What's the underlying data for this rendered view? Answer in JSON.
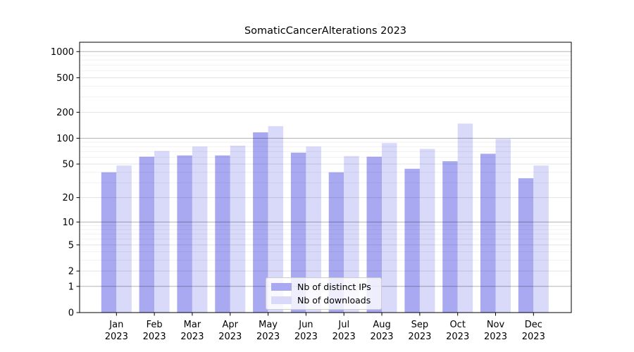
{
  "title": "SomaticCancerAlterations 2023",
  "legend": {
    "series1_label": "Nb of distinct IPs",
    "series2_label": "Nb of downloads"
  },
  "chart_data": {
    "type": "bar",
    "title": "SomaticCancerAlterations 2023",
    "yscale": "log1p",
    "grid": true,
    "legend_position": "lower center",
    "categories": [
      "Jan",
      "Feb",
      "Mar",
      "Apr",
      "May",
      "Jun",
      "Jul",
      "Aug",
      "Sep",
      "Oct",
      "Nov",
      "Dec"
    ],
    "x_year": "2023",
    "y_ticks": [
      0,
      1,
      2,
      5,
      10,
      20,
      50,
      100,
      200,
      500,
      1000
    ],
    "ylim": [
      0,
      1300
    ],
    "series": [
      {
        "name": "Nb of distinct IPs",
        "color": "#a9a9f2",
        "values": [
          40,
          61,
          63,
          63,
          117,
          68,
          40,
          61,
          44,
          54,
          66,
          34
        ]
      },
      {
        "name": "Nb of downloads",
        "color": "#d9d9f9",
        "values": [
          48,
          71,
          80,
          82,
          138,
          80,
          62,
          88,
          75,
          148,
          98,
          48
        ]
      }
    ],
    "colors": {
      "spine": "#000000",
      "grid_major": "rgba(0,0,0,0.30)",
      "grid_mid": "rgba(0,0,0,0.11)",
      "grid_minor": "rgba(0,0,0,0.055)",
      "tick_label": "#000000"
    }
  }
}
